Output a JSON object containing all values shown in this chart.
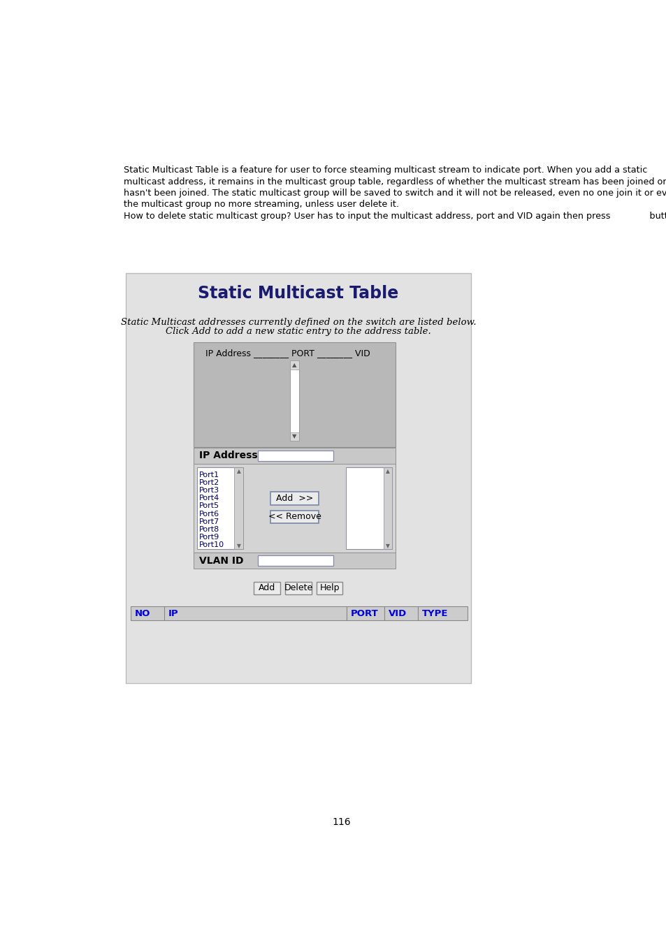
{
  "bg_color": "#ffffff",
  "body_text": [
    "Static Multicast Table is a feature for user to force steaming multicast stream to indicate port. When you add a static",
    "multicast address, it remains in the multicast group table, regardless of whether the multicast stream has been joined or",
    "hasn't been joined. The static multicast group will be saved to switch and it will not be released, even no one join it or even",
    "the multicast group no more streaming, unless user delete it."
  ],
  "delete_line": "How to delete static multicast group? User has to input the multicast address, port and VID again then press              button.",
  "panel_bg": "#d8d8d8",
  "panel_title": "Static Multicast Table",
  "panel_title_color": "#1a1a6e",
  "panel_subtitle1": "Static Multicast addresses currently defined on the switch are listed below.",
  "panel_subtitle2": "Click Add to add a new static entry to the address table.",
  "listbox_header": "IP Address ________ PORT ________ VID",
  "listbox_bg": "#b8b8b8",
  "ip_label": "IP Address",
  "ports": [
    "Port1",
    "Port2",
    "Port3",
    "Port4",
    "Port5",
    "Port6",
    "Port7",
    "Port8",
    "Port9",
    "Port10"
  ],
  "btn_add_label": "Add  >>",
  "btn_remove_label": "<< Remove",
  "vlan_label": "VLAN ID",
  "bottom_buttons": [
    "Add",
    "Delete",
    "Help"
  ],
  "table_headers": [
    "NO",
    "IP",
    "PORT",
    "VID",
    "TYPE"
  ],
  "table_header_color": "#0000dd",
  "table_bg": "#cccccc",
  "page_number": "116",
  "text_font_size": 9.2,
  "panel_outer_bg": "#e2e2e2",
  "panel_border_color": "#aaaaaa",
  "inner_bg": "#c0c0c0",
  "port_section_bg": "#d4d4d4",
  "vlan_bg": "#c8c8c8",
  "input_border": "#8888aa"
}
